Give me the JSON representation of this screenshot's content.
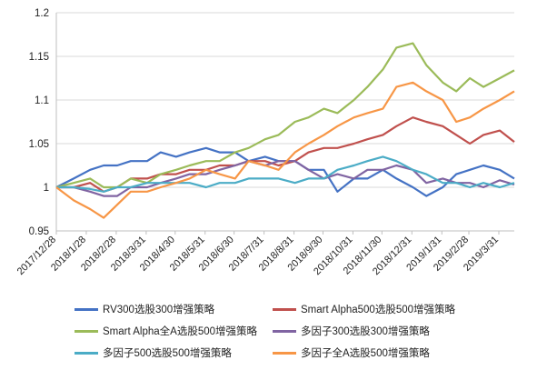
{
  "chart_data": {
    "type": "line",
    "title": "",
    "xlabel": "",
    "ylabel": "",
    "ylim": [
      0.95,
      1.2
    ],
    "yticks": [
      "0.95",
      "1",
      "1.05",
      "1.1",
      "1.15",
      "1.2"
    ],
    "yticks_values": [
      0.95,
      1.0,
      1.05,
      1.1,
      1.15,
      1.2
    ],
    "x_range": [
      "2017-12-28",
      "2019-04-16"
    ],
    "xticks": [
      "2017/12/28",
      "2018/1/28",
      "2018/2/28",
      "2018/3/31",
      "2018/4/30",
      "2018/5/31",
      "2018/6/30",
      "2018/7/31",
      "2018/8/31",
      "2018/9/30",
      "2018/10/31",
      "2018/11/30",
      "2018/12/31",
      "2019/1/31",
      "2019/2/28",
      "2019/3/31"
    ],
    "xticks_dates": [
      "2017-12-28",
      "2018-01-28",
      "2018-02-28",
      "2018-03-31",
      "2018-04-30",
      "2018-05-31",
      "2018-06-30",
      "2018-07-31",
      "2018-08-31",
      "2018-09-30",
      "2018-10-31",
      "2018-11-30",
      "2018-12-31",
      "2019-01-31",
      "2019-02-28",
      "2019-03-31"
    ],
    "grid": true,
    "legend_position": "bottom",
    "series": [
      {
        "name": "RV300选股300增强策略",
        "color": "#4472C4",
        "x": [
          "2017-12-28",
          "2018-01-15",
          "2018-02-01",
          "2018-02-15",
          "2018-03-01",
          "2018-03-15",
          "2018-04-01",
          "2018-04-15",
          "2018-05-01",
          "2018-05-15",
          "2018-06-01",
          "2018-06-15",
          "2018-07-01",
          "2018-07-15",
          "2018-08-01",
          "2018-08-15",
          "2018-09-01",
          "2018-09-15",
          "2018-10-01",
          "2018-10-15",
          "2018-11-01",
          "2018-11-15",
          "2018-12-01",
          "2018-12-15",
          "2019-01-01",
          "2019-01-15",
          "2019-02-01",
          "2019-02-15",
          "2019-03-01",
          "2019-03-15",
          "2019-04-01",
          "2019-04-16"
        ],
        "y": [
          1.0,
          1.01,
          1.02,
          1.025,
          1.025,
          1.03,
          1.03,
          1.04,
          1.035,
          1.04,
          1.045,
          1.04,
          1.04,
          1.03,
          1.035,
          1.03,
          1.03,
          1.02,
          1.02,
          0.995,
          1.01,
          1.01,
          1.02,
          1.01,
          1.0,
          0.99,
          1.0,
          1.015,
          1.02,
          1.025,
          1.02,
          1.01
        ]
      },
      {
        "name": "Smart Alpha500选股500增强策略",
        "color": "#C0504D",
        "x": [
          "2017-12-28",
          "2018-01-15",
          "2018-02-01",
          "2018-02-15",
          "2018-03-01",
          "2018-03-15",
          "2018-04-01",
          "2018-04-15",
          "2018-05-01",
          "2018-05-15",
          "2018-06-01",
          "2018-06-15",
          "2018-07-01",
          "2018-07-15",
          "2018-08-01",
          "2018-08-15",
          "2018-09-01",
          "2018-09-15",
          "2018-10-01",
          "2018-10-15",
          "2018-11-01",
          "2018-11-15",
          "2018-12-01",
          "2018-12-15",
          "2019-01-01",
          "2019-01-15",
          "2019-02-01",
          "2019-02-15",
          "2019-03-01",
          "2019-03-15",
          "2019-04-01",
          "2019-04-16"
        ],
        "y": [
          1.0,
          1.0,
          1.005,
          0.995,
          1.0,
          1.01,
          1.01,
          1.015,
          1.015,
          1.02,
          1.02,
          1.025,
          1.025,
          1.03,
          1.03,
          1.025,
          1.03,
          1.04,
          1.045,
          1.045,
          1.05,
          1.055,
          1.06,
          1.07,
          1.08,
          1.075,
          1.07,
          1.06,
          1.05,
          1.06,
          1.065,
          1.052
        ]
      },
      {
        "name": "Smart Alpha全A选股500增强策略",
        "color": "#9BBB59",
        "x": [
          "2017-12-28",
          "2018-01-15",
          "2018-02-01",
          "2018-02-15",
          "2018-03-01",
          "2018-03-15",
          "2018-04-01",
          "2018-04-15",
          "2018-05-01",
          "2018-05-15",
          "2018-06-01",
          "2018-06-15",
          "2018-07-01",
          "2018-07-15",
          "2018-08-01",
          "2018-08-15",
          "2018-09-01",
          "2018-09-15",
          "2018-10-01",
          "2018-10-15",
          "2018-11-01",
          "2018-11-15",
          "2018-12-01",
          "2018-12-15",
          "2019-01-01",
          "2019-01-15",
          "2019-02-01",
          "2019-02-15",
          "2019-03-01",
          "2019-03-15",
          "2019-04-01",
          "2019-04-16"
        ],
        "y": [
          1.0,
          1.005,
          1.01,
          1.0,
          1.0,
          1.01,
          1.005,
          1.015,
          1.02,
          1.025,
          1.03,
          1.03,
          1.04,
          1.045,
          1.055,
          1.06,
          1.075,
          1.08,
          1.09,
          1.085,
          1.1,
          1.115,
          1.135,
          1.16,
          1.165,
          1.14,
          1.12,
          1.11,
          1.125,
          1.115,
          1.125,
          1.134
        ]
      },
      {
        "name": "多因子300选股300增强策略",
        "color": "#8064A2",
        "x": [
          "2017-12-28",
          "2018-01-15",
          "2018-02-01",
          "2018-02-15",
          "2018-03-01",
          "2018-03-15",
          "2018-04-01",
          "2018-04-15",
          "2018-05-01",
          "2018-05-15",
          "2018-06-01",
          "2018-06-15",
          "2018-07-01",
          "2018-07-15",
          "2018-08-01",
          "2018-08-15",
          "2018-09-01",
          "2018-09-15",
          "2018-10-01",
          "2018-10-15",
          "2018-11-01",
          "2018-11-15",
          "2018-12-01",
          "2018-12-15",
          "2019-01-01",
          "2019-01-15",
          "2019-02-01",
          "2019-02-15",
          "2019-03-01",
          "2019-03-15",
          "2019-04-01",
          "2019-04-16"
        ],
        "y": [
          1.0,
          1.0,
          0.995,
          0.99,
          0.99,
          1.0,
          1.0,
          1.005,
          1.01,
          1.015,
          1.015,
          1.02,
          1.025,
          1.03,
          1.025,
          1.03,
          1.03,
          1.02,
          1.01,
          1.015,
          1.01,
          1.02,
          1.02,
          1.025,
          1.02,
          1.005,
          1.01,
          1.005,
          1.005,
          1.0,
          1.008,
          1.003
        ]
      },
      {
        "name": "多因子500选股500增强策略",
        "color": "#4BACC6",
        "x": [
          "2017-12-28",
          "2018-01-15",
          "2018-02-01",
          "2018-02-15",
          "2018-03-01",
          "2018-03-15",
          "2018-04-01",
          "2018-04-15",
          "2018-05-01",
          "2018-05-15",
          "2018-06-01",
          "2018-06-15",
          "2018-07-01",
          "2018-07-15",
          "2018-08-01",
          "2018-08-15",
          "2018-09-01",
          "2018-09-15",
          "2018-10-01",
          "2018-10-15",
          "2018-11-01",
          "2018-11-15",
          "2018-12-01",
          "2018-12-15",
          "2019-01-01",
          "2019-01-15",
          "2019-02-01",
          "2019-02-15",
          "2019-03-01",
          "2019-03-15",
          "2019-04-01",
          "2019-04-16"
        ],
        "y": [
          1.0,
          1.0,
          0.998,
          0.995,
          1.0,
          1.0,
          1.005,
          1.005,
          1.005,
          1.005,
          1.0,
          1.005,
          1.005,
          1.01,
          1.01,
          1.01,
          1.005,
          1.01,
          1.01,
          1.02,
          1.025,
          1.03,
          1.035,
          1.03,
          1.02,
          1.015,
          1.005,
          1.005,
          1.0,
          1.005,
          1.0,
          1.005
        ]
      },
      {
        "name": "多因子全A选股500增强策略",
        "color": "#F79646",
        "x": [
          "2017-12-28",
          "2018-01-15",
          "2018-02-01",
          "2018-02-15",
          "2018-03-01",
          "2018-03-15",
          "2018-04-01",
          "2018-04-15",
          "2018-05-01",
          "2018-05-15",
          "2018-06-01",
          "2018-06-15",
          "2018-07-01",
          "2018-07-15",
          "2018-08-01",
          "2018-08-15",
          "2018-09-01",
          "2018-09-15",
          "2018-10-01",
          "2018-10-15",
          "2018-11-01",
          "2018-11-15",
          "2018-12-01",
          "2018-12-15",
          "2019-01-01",
          "2019-01-15",
          "2019-02-01",
          "2019-02-15",
          "2019-03-01",
          "2019-03-15",
          "2019-04-01",
          "2019-04-16"
        ],
        "y": [
          1.0,
          0.985,
          0.975,
          0.965,
          0.98,
          0.995,
          0.995,
          1.0,
          1.005,
          1.01,
          1.02,
          1.015,
          1.01,
          1.03,
          1.025,
          1.02,
          1.04,
          1.05,
          1.06,
          1.07,
          1.08,
          1.085,
          1.09,
          1.115,
          1.12,
          1.11,
          1.1,
          1.075,
          1.08,
          1.09,
          1.1,
          1.11
        ]
      }
    ]
  }
}
